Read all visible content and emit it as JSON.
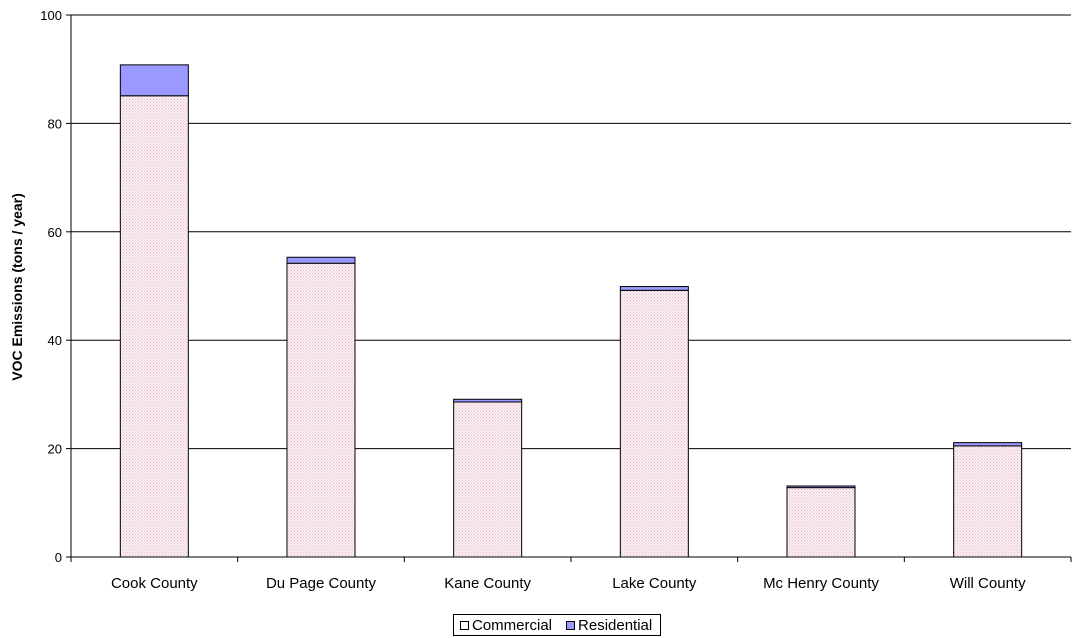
{
  "chart_data": {
    "type": "bar",
    "stacked": true,
    "categories": [
      "Cook County",
      "Du Page County",
      "Kane County",
      "Lake County",
      "Mc Henry County",
      "Will County"
    ],
    "series": [
      {
        "name": "Commercial",
        "values": [
          85.1,
          54.2,
          28.6,
          49.2,
          12.8,
          20.5
        ],
        "color": "#f6e4ea"
      },
      {
        "name": "Residential",
        "values": [
          5.7,
          1.1,
          0.5,
          0.7,
          0.3,
          0.6
        ],
        "color": "#9999ff"
      }
    ],
    "ylabel": "VOC Emissions (tons / year)",
    "xlabel": "",
    "title": "",
    "ylim": [
      0,
      100
    ],
    "yticks": [
      0,
      20,
      40,
      60,
      80,
      100
    ],
    "grid": true,
    "legend_position": "bottom"
  }
}
